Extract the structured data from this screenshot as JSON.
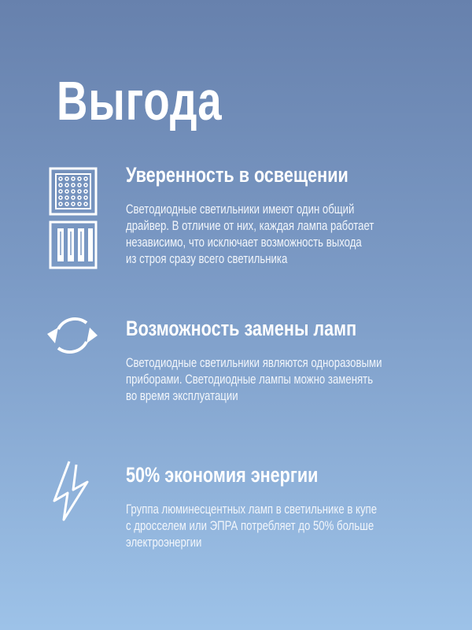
{
  "title": "Выгода",
  "sections": [
    {
      "icon": "led-panel-and-lamp-fixture-icon",
      "heading": "Уверенность в освещении",
      "text": "Светодиодные светильники имеют один общий\nдрайвер. В отличие от них, каждая лампа работает\nнезависимо, что исключает возможность выхода\nиз строя сразу всего светильника"
    },
    {
      "icon": "refresh-arrows-icon",
      "heading": "Возможность замены ламп",
      "text": "Светодиодные светильники являются одноразовыми\nприборами. Светодиодные лампы можно заменять\nво время эксплуатации"
    },
    {
      "icon": "lightning-bolt-icon",
      "heading": "50% экономия энергии",
      "text": "Группа люминесцентных ламп в светильнике в купе\nс дросселем или ЭПРА потребляет до 50% больше\nэлектроэнергии"
    }
  ]
}
